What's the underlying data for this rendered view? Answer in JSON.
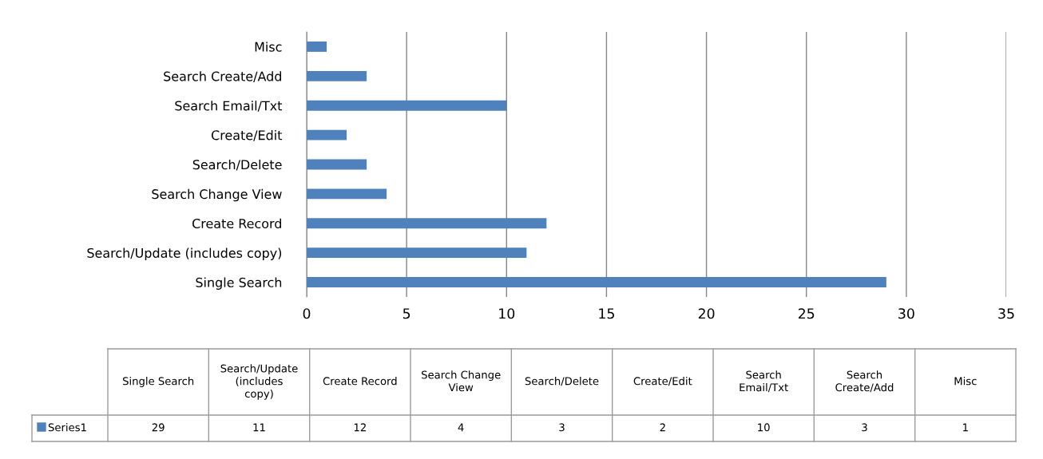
{
  "chart_data": {
    "type": "bar",
    "orientation": "horizontal",
    "categories": [
      "Misc",
      "Search Create/Add",
      "Search Email/Txt",
      "Create/Edit",
      "Search/Delete",
      "Search Change View",
      "Create Record",
      "Search/Update (includes copy)",
      "Single Search"
    ],
    "series": [
      {
        "name": "Series1",
        "color": "#4f81bd",
        "values": [
          1,
          3,
          10,
          2,
          3,
          4,
          12,
          11,
          29
        ]
      }
    ],
    "xlim": [
      0,
      35
    ],
    "xticks": [
      0,
      5,
      10,
      15,
      20,
      25,
      30,
      35
    ],
    "grid": "x",
    "annotations": [
      "29",
      "11",
      "12",
      "4",
      "3",
      "2",
      "10",
      "3",
      "1"
    ]
  }
}
